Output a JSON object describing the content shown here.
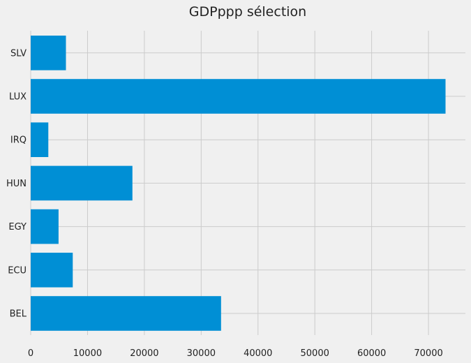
{
  "chart_data": {
    "type": "bar",
    "orientation": "horizontal",
    "title": "GDPppp sélection",
    "xlabel": "",
    "ylabel": "",
    "categories": [
      "BEL",
      "ECU",
      "EGY",
      "HUN",
      "IRQ",
      "LUX",
      "SLV"
    ],
    "values": [
      33500,
      7400,
      4900,
      17900,
      3100,
      73000,
      6200
    ],
    "xlim": [
      0,
      76500
    ],
    "xticks": [
      0,
      10000,
      20000,
      30000,
      40000,
      50000,
      60000,
      70000
    ],
    "xtick_labels": [
      "0",
      "10000",
      "20000",
      "30000",
      "40000",
      "50000",
      "60000",
      "70000"
    ],
    "grid": true,
    "bar_color": "#008fd5",
    "background": "#f0f0f0"
  }
}
